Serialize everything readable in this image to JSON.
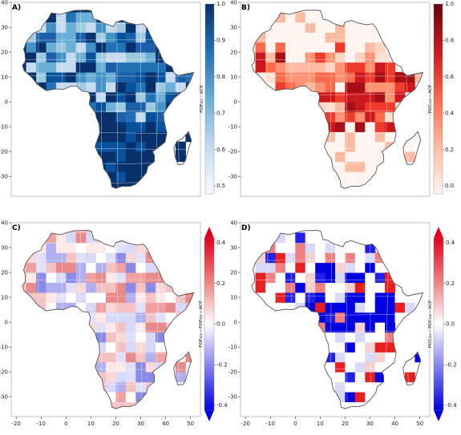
{
  "panels": [
    {
      "id": "A",
      "label": "A)",
      "colorbar": {
        "label": "FOP₁₂₃ – ACP",
        "ticks": [
          "1.0",
          "0.9",
          "0.8",
          "0.7",
          "0.6",
          "0.5"
        ],
        "stops": [
          "#08306b",
          "#2171b5",
          "#6baed6",
          "#c6dbef",
          "#f7fbff"
        ],
        "arrows": false
      },
      "palette": [
        "#08306b",
        "#08519c",
        "#2171b5",
        "#4292c6",
        "#6baed6",
        "#9ecae1",
        "#c6dbef",
        "#1c5fa8"
      ]
    },
    {
      "id": "B",
      "label": "B)",
      "colorbar": {
        "label": "POC₁₂₃ – ACP",
        "ticks": [
          "1.0",
          "0.8",
          "0.6",
          "0.4",
          "0.2",
          "0.0"
        ],
        "stops": [
          "#67000d",
          "#cb181d",
          "#fb6a4a",
          "#fcbba1",
          "#fff5f0"
        ],
        "arrows": false
      },
      "palette": [
        "#fff5f0",
        "#fee0d2",
        "#fcd4c2",
        "#fcbba1",
        "#fc9272",
        "#fb6a4a",
        "#ef3b2c",
        "#cb181d",
        "#a50f15"
      ]
    },
    {
      "id": "C",
      "label": "C)",
      "colorbar": {
        "label": "FOP₁₂₃ – FOP₁₂₃ – ACP",
        "ticks": [
          "0.4",
          "0.2",
          "0.0",
          "-0.2",
          "-0.4"
        ],
        "stops": [
          "#e3001b",
          "#f08080",
          "#ffffff",
          "#8080f0",
          "#0000e0"
        ],
        "arrows": true
      },
      "palette": [
        "#f4c2c2",
        "#f8d8d8",
        "#ffffff",
        "#d8d8f8",
        "#b0b0f0",
        "#e88a8a",
        "#ffe8e8",
        "#e0e0fa",
        "#f0a0a0",
        "#8a8ae8"
      ]
    },
    {
      "id": "D",
      "label": "D)",
      "colorbar": {
        "label": "POC₁₂₃ – POC₁₂₃ – ACP",
        "ticks": [
          "0.4",
          "0.2",
          "0.0",
          "-0.2",
          "-0.4"
        ],
        "stops": [
          "#e3001b",
          "#f08080",
          "#ffffff",
          "#8080f0",
          "#0000e0"
        ],
        "arrows": true
      },
      "palette": [
        "#ffffff",
        "#ffffff",
        "#f4d0d0",
        "#e82020",
        "#ffffff",
        "#2020e8",
        "#d8d8f8",
        "#ffffff",
        "#f08080",
        "#0000e0"
      ]
    }
  ],
  "axes": {
    "x_ticks": [
      "-20",
      "-10",
      "0",
      "10",
      "20",
      "30",
      "40",
      "50"
    ],
    "y_ticks": [
      "40",
      "30",
      "20",
      "10",
      "0",
      "-10",
      "-20",
      "-30"
    ]
  }
}
